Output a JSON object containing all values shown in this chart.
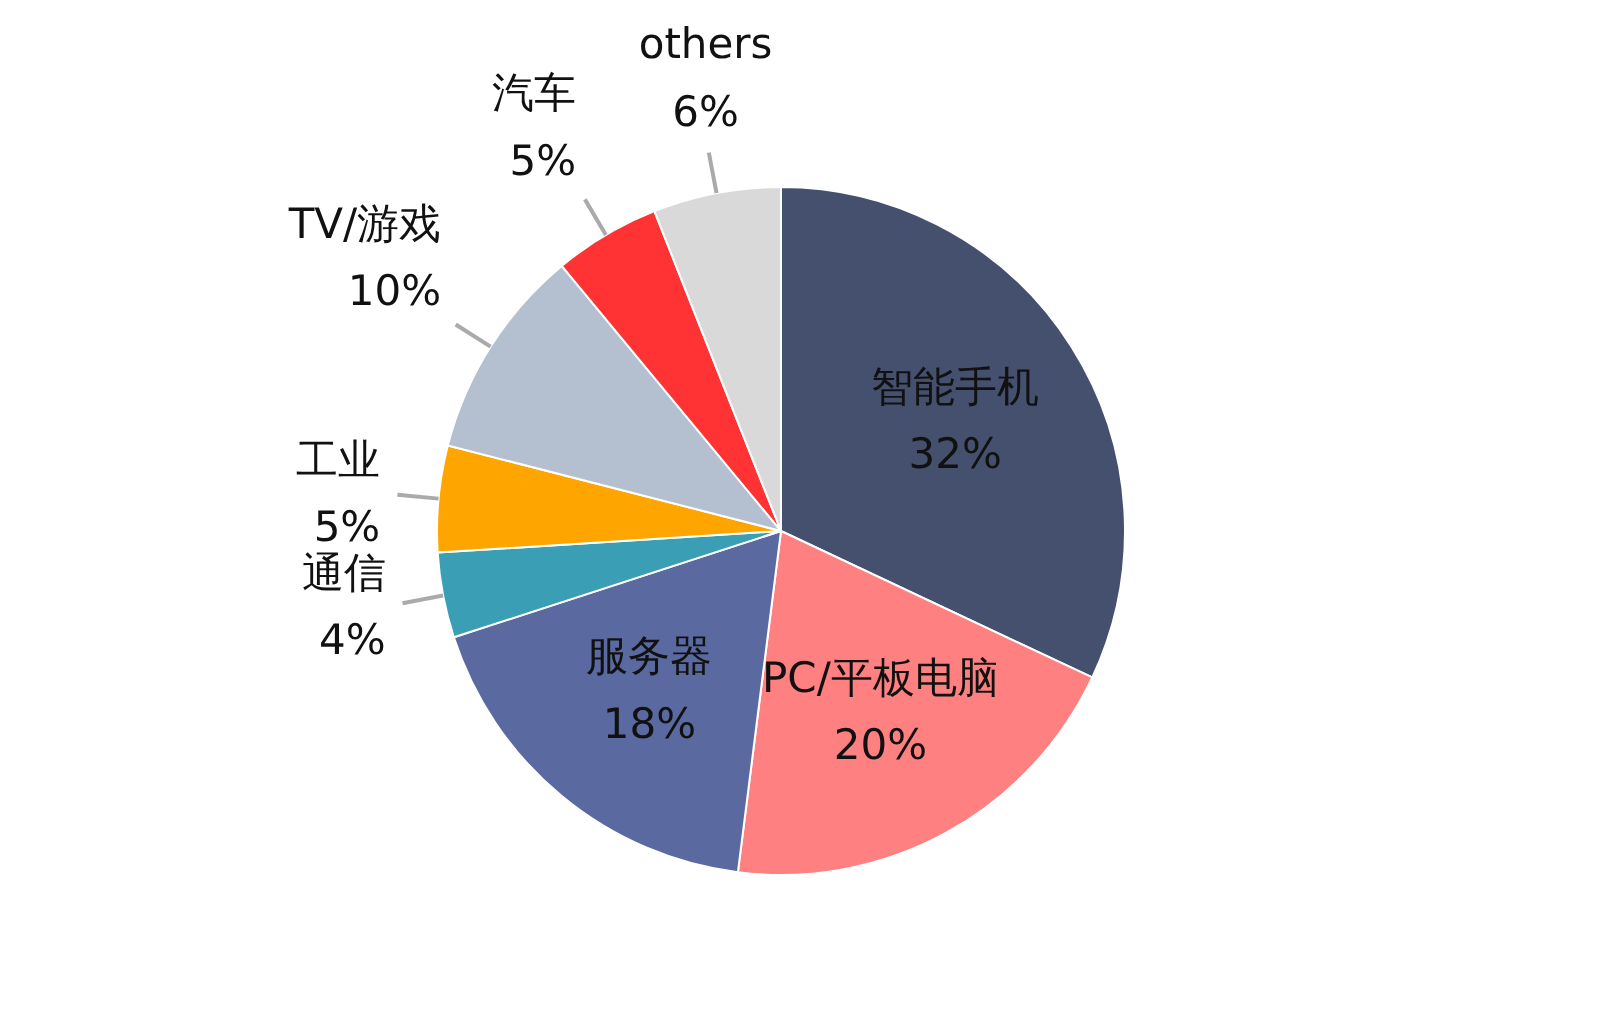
{
  "chart_data": {
    "type": "pie",
    "categories": [
      "智能手机",
      "PC/平板电脑",
      "服务器",
      "通信",
      "工业",
      "TV/游戏",
      "汽车",
      "others"
    ],
    "values": [
      32,
      20,
      18,
      4,
      5,
      10,
      5,
      6
    ],
    "value_labels": [
      "32%",
      "20%",
      "18%",
      "4%",
      "5%",
      "10%",
      "5%",
      "6%"
    ],
    "colors": [
      "#44506e",
      "#ff8080",
      "#5a6aa0",
      "#3a9eb5",
      "#ffa500",
      "#b4bfd0",
      "#ff3333",
      "#d9d9d9"
    ]
  }
}
